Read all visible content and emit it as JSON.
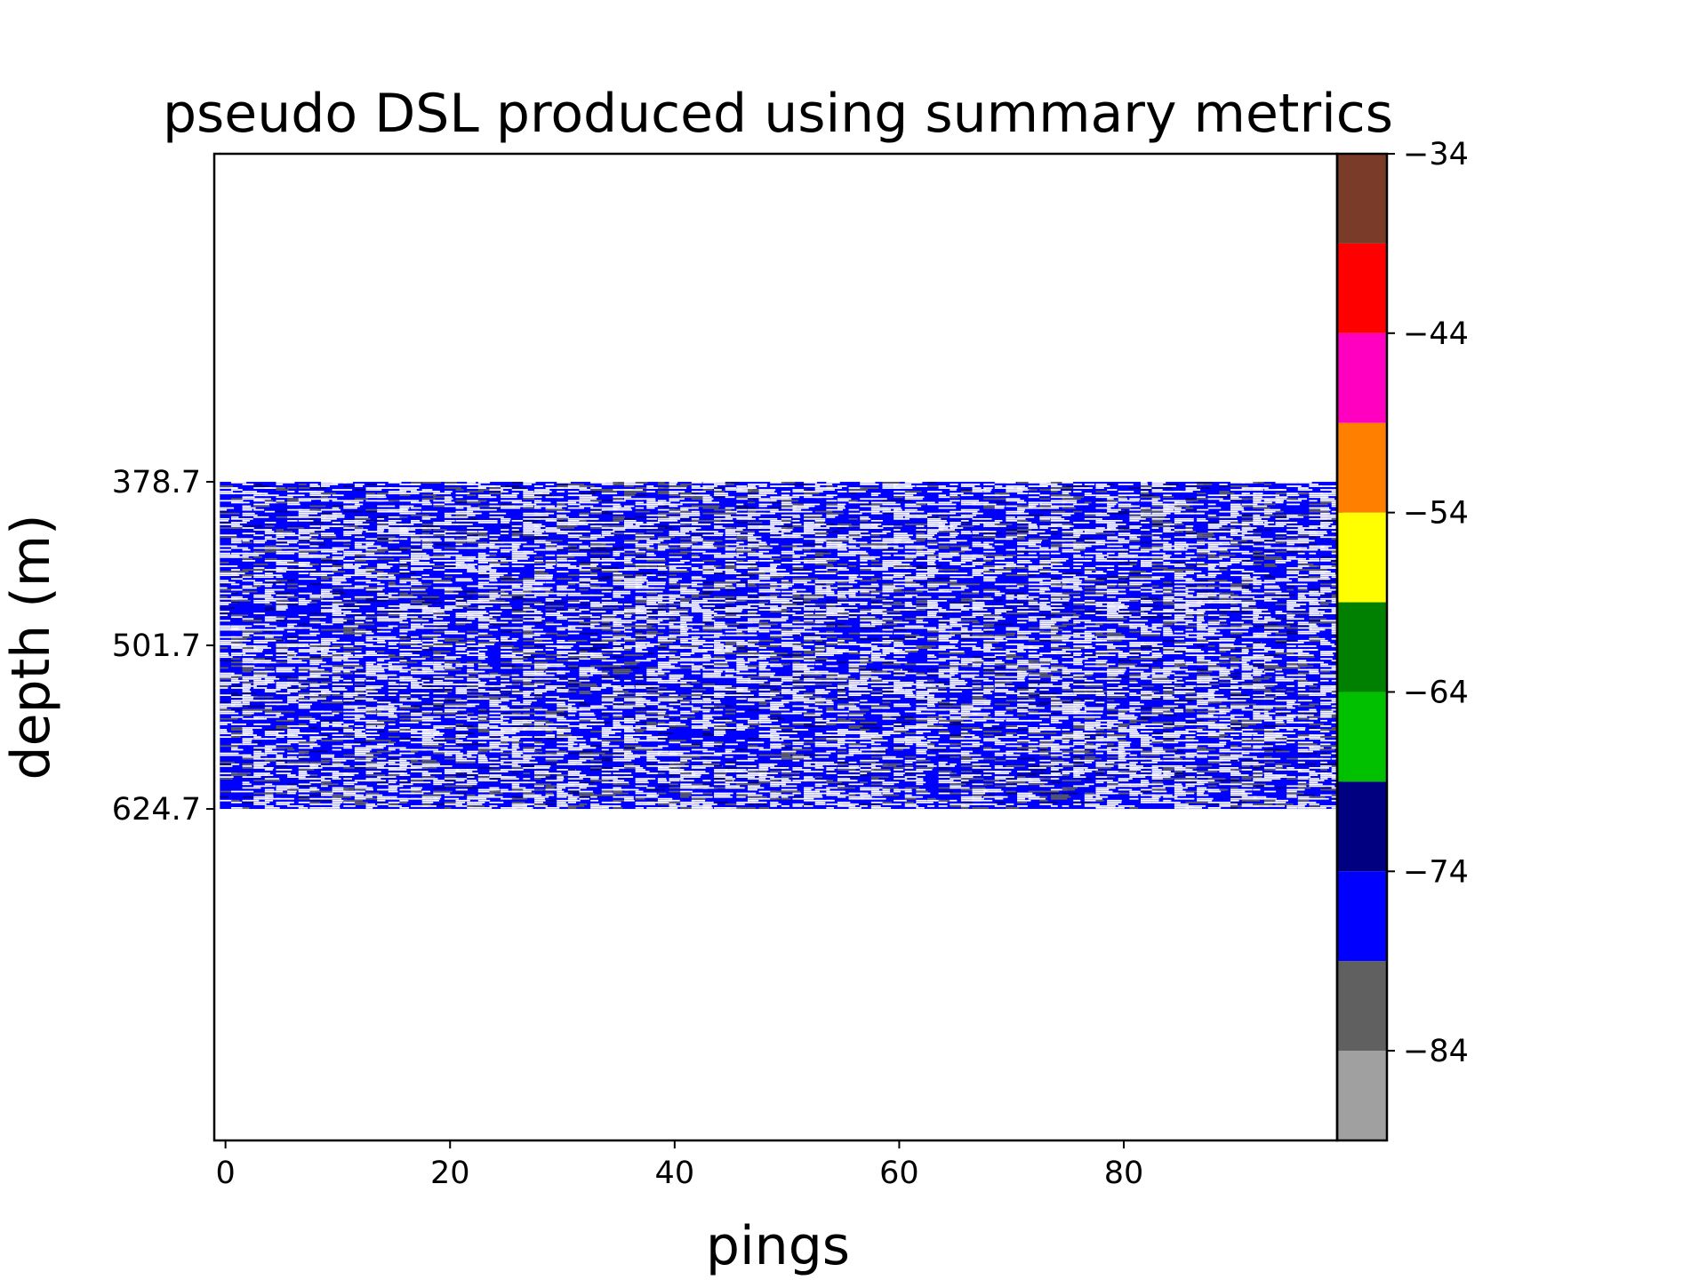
{
  "chart_data": {
    "type": "heatmap",
    "title": "pseudo DSL produced using summary metrics",
    "xlabel": "pings",
    "ylabel": "depth (m)",
    "x_ticks": [
      0,
      20,
      40,
      60,
      80
    ],
    "xlim": [
      -1,
      99
    ],
    "y_ticks": [
      378.7,
      501.7,
      624.7
    ],
    "ylim": [
      874,
      132
    ],
    "data_extent": {
      "x": [
        0,
        99
      ],
      "depth": [
        378.7,
        624.7
      ]
    },
    "colorbar": {
      "ticks": [
        -34,
        -44,
        -54,
        -64,
        -74,
        -84
      ],
      "range": [
        -89,
        -34
      ],
      "bins": [
        {
          "from": -89,
          "to": -84,
          "color": "#a0a0a0"
        },
        {
          "from": -84,
          "to": -79,
          "color": "#606060"
        },
        {
          "from": -79,
          "to": -74,
          "color": "#0000ff"
        },
        {
          "from": -74,
          "to": -69,
          "color": "#000080"
        },
        {
          "from": -69,
          "to": -64,
          "color": "#00c000"
        },
        {
          "from": -64,
          "to": -59,
          "color": "#008000"
        },
        {
          "from": -59,
          "to": -54,
          "color": "#ffff00"
        },
        {
          "from": -54,
          "to": -49,
          "color": "#ff8000"
        },
        {
          "from": -49,
          "to": -44,
          "color": "#ff00c0"
        },
        {
          "from": -44,
          "to": -39,
          "color": "#ff0000"
        },
        {
          "from": -39,
          "to": -34,
          "color": "#7a3c28"
        }
      ]
    },
    "cell_color_mix": {
      "blue": 0.5,
      "white": 0.36,
      "gray": 0.1,
      "navy": 0.04
    }
  }
}
